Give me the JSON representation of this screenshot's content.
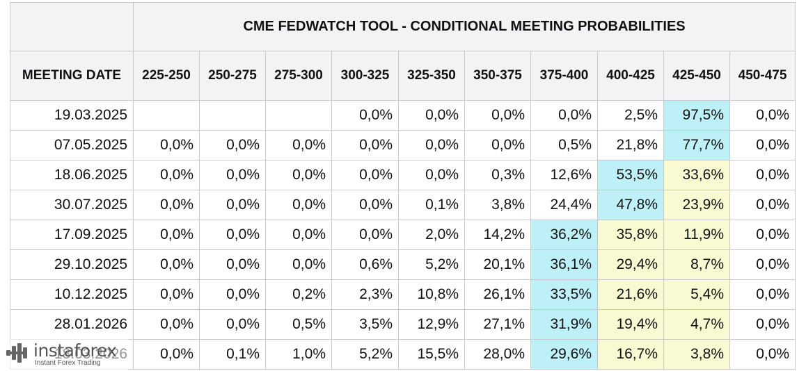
{
  "table": {
    "title": "CME FEDWATCH TOOL - CONDITIONAL MEETING PROBABILITIES",
    "date_header": "MEETING DATE",
    "rate_ranges": [
      "225-250",
      "250-275",
      "275-300",
      "300-325",
      "325-350",
      "350-375",
      "375-400",
      "400-425",
      "425-450",
      "450-475"
    ],
    "rows": [
      {
        "date": "19.03.2025",
        "values": [
          "",
          "",
          "",
          "0,0%",
          "0,0%",
          "0,0%",
          "0,0%",
          "2,5%",
          "97,5%",
          "0,0%"
        ]
      },
      {
        "date": "07.05.2025",
        "values": [
          "0,0%",
          "0,0%",
          "0,0%",
          "0,0%",
          "0,0%",
          "0,0%",
          "0,5%",
          "21,8%",
          "77,7%",
          "0,0%"
        ]
      },
      {
        "date": "18.06.2025",
        "values": [
          "0,0%",
          "0,0%",
          "0,0%",
          "0,0%",
          "0,0%",
          "0,3%",
          "12,6%",
          "53,5%",
          "33,6%",
          "0,0%"
        ]
      },
      {
        "date": "30.07.2025",
        "values": [
          "0,0%",
          "0,0%",
          "0,0%",
          "0,0%",
          "0,1%",
          "3,8%",
          "24,4%",
          "47,8%",
          "23,9%",
          "0,0%"
        ]
      },
      {
        "date": "17.09.2025",
        "values": [
          "0,0%",
          "0,0%",
          "0,0%",
          "0,0%",
          "2,0%",
          "14,2%",
          "36,2%",
          "35,8%",
          "11,9%",
          "0,0%"
        ]
      },
      {
        "date": "29.10.2025",
        "values": [
          "0,0%",
          "0,0%",
          "0,0%",
          "0,6%",
          "5,2%",
          "20,1%",
          "36,1%",
          "29,4%",
          "8,7%",
          "0,0%"
        ]
      },
      {
        "date": "10.12.2025",
        "values": [
          "0,0%",
          "0,0%",
          "0,2%",
          "2,3%",
          "10,8%",
          "26,1%",
          "33,5%",
          "21,6%",
          "5,4%",
          "0,0%"
        ]
      },
      {
        "date": "28.01.2026",
        "values": [
          "0,0%",
          "0,0%",
          "0,5%",
          "3,5%",
          "12,9%",
          "27,1%",
          "31,9%",
          "19,4%",
          "4,7%",
          "0,0%"
        ]
      },
      {
        "date": "18.03.2026",
        "values": [
          "0,0%",
          "0,1%",
          "1,0%",
          "5,2%",
          "15,5%",
          "28,0%",
          "29,6%",
          "16,7%",
          "3,8%",
          "0,0%"
        ]
      }
    ],
    "highlights": {
      "blue_hex": "#bdf0f7",
      "yellow_hex": "#fafad2",
      "blue_cells": [
        [
          0,
          8
        ],
        [
          1,
          8
        ],
        [
          2,
          7
        ],
        [
          3,
          7
        ],
        [
          4,
          6
        ],
        [
          5,
          6
        ],
        [
          6,
          6
        ],
        [
          7,
          6
        ],
        [
          8,
          6
        ]
      ],
      "yellow_cells": [
        [
          2,
          8
        ],
        [
          3,
          8
        ],
        [
          4,
          7
        ],
        [
          4,
          8
        ],
        [
          5,
          7
        ],
        [
          5,
          8
        ],
        [
          6,
          7
        ],
        [
          6,
          8
        ],
        [
          7,
          7
        ],
        [
          7,
          8
        ],
        [
          8,
          7
        ],
        [
          8,
          8
        ]
      ]
    }
  },
  "watermark": {
    "brand": "instaforex",
    "tagline": "Instant Forex Trading",
    "icon": "instaforex-logo-icon"
  }
}
